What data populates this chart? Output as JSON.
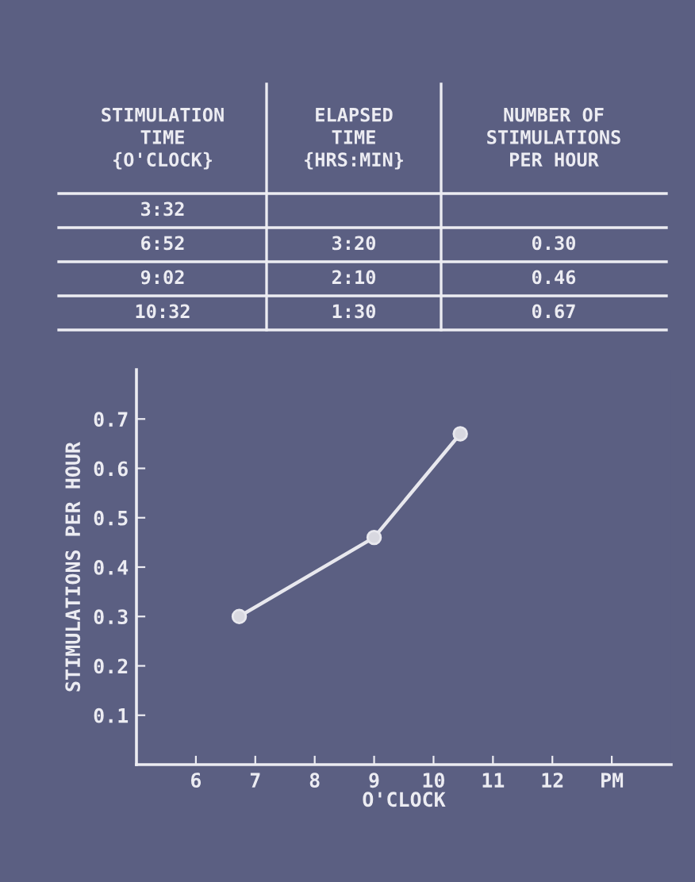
{
  "chart_data": [
    {
      "type": "other",
      "annotations": [
        "STIMULATION\nTIME\n{O'CLOCK}",
        "ELAPSED\nTIME\n{HRS:MIN}",
        "NUMBER OF\nSTIMULATIONS\nPER HOUR",
        "3:32",
        null,
        null,
        "6:52",
        "3:20",
        "0.30",
        "9:02",
        "2:10",
        "0.46",
        "10:32",
        "1:30",
        "0.67"
      ]
    },
    {
      "type": "line",
      "xlabel": "O'CLOCK",
      "ylabel": "STIMULATIONS PER HOUR",
      "x": [
        6.73,
        9.0,
        10.45
      ],
      "series": [
        {
          "color": "#e8e8ee",
          "values": [
            0.3,
            0.46,
            0.67
          ]
        }
      ],
      "xlim": [
        5,
        14
      ],
      "ylim": [
        0,
        0.8
      ],
      "xticks": [
        6,
        7,
        8,
        9,
        10,
        11,
        12,
        {
          "value": 13,
          "label": "PM"
        }
      ],
      "yticks": [
        {
          "value": 0.1,
          "label": "0.1"
        },
        {
          "value": 0.2,
          "label": "0.2"
        },
        {
          "value": 0.3,
          "label": "0.3"
        },
        {
          "value": 0.4,
          "label": "0.4"
        },
        {
          "value": 0.5,
          "label": "0.5"
        },
        {
          "value": 0.6,
          "label": "0.6"
        },
        {
          "value": 0.7,
          "label": "0.7"
        }
      ],
      "marker": "circle",
      "line_style": "solid",
      "grid": false,
      "legend": false
    }
  ]
}
